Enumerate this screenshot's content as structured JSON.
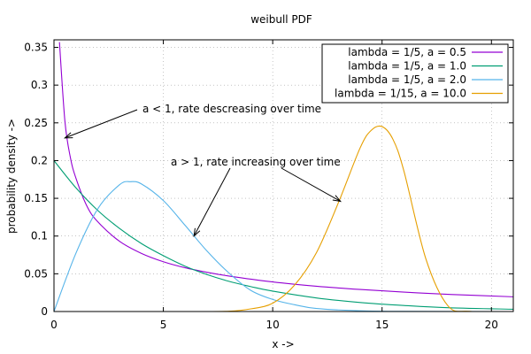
{
  "chart_data": {
    "type": "line",
    "title": "weibull PDF",
    "xlabel": "x ->",
    "ylabel": "probability density ->",
    "xlim": [
      0,
      21
    ],
    "ylim": [
      0,
      0.36
    ],
    "x_ticks": [
      "0",
      "5",
      "10",
      "15",
      "20"
    ],
    "x_tick_values": [
      0,
      5,
      10,
      15,
      20
    ],
    "y_ticks": [
      "0",
      "0.05",
      "0.1",
      "0.15",
      "0.2",
      "0.25",
      "0.3",
      "0.35"
    ],
    "y_tick_values": [
      0,
      0.05,
      0.1,
      0.15,
      0.2,
      0.25,
      0.3,
      0.35
    ],
    "grid": true,
    "legend_position": "top-right",
    "series": [
      {
        "name": "lambda = 1/5, a = 0.5",
        "color": "#9400d3",
        "x": [
          0.25,
          0.5,
          0.75,
          1,
          1.5,
          2,
          3,
          4,
          5,
          6,
          7,
          8,
          10,
          12,
          14,
          16,
          18,
          21
        ],
        "y": [
          0.357,
          0.252,
          0.204,
          0.177,
          0.14,
          0.119,
          0.093,
          0.077,
          0.066,
          0.058,
          0.052,
          0.047,
          0.0392,
          0.0335,
          0.0292,
          0.0257,
          0.0228,
          0.0195
        ]
      },
      {
        "name": "lambda = 1/5, a = 1.0",
        "color": "#009e73",
        "x": [
          0,
          1,
          2,
          3,
          4,
          5,
          6,
          7,
          8,
          9,
          10,
          12,
          14,
          16,
          18,
          21
        ],
        "y": [
          0.2,
          0.164,
          0.134,
          0.11,
          0.09,
          0.074,
          0.06,
          0.049,
          0.04,
          0.033,
          0.027,
          0.018,
          0.012,
          0.008,
          0.005,
          0.003
        ]
      },
      {
        "name": "lambda = 1/5, a = 2.0",
        "color": "#56b4e9",
        "x": [
          0,
          1,
          2,
          3,
          3.5,
          4,
          5,
          6,
          7,
          8,
          9,
          10,
          11,
          12,
          14,
          16,
          21
        ],
        "y": [
          0,
          0.077,
          0.136,
          0.168,
          0.172,
          0.169,
          0.147,
          0.114,
          0.08,
          0.051,
          0.028,
          0.016,
          0.009,
          0.004,
          0.001,
          0.0002,
          0
        ]
      },
      {
        "name": "lambda = 1/15, a = 10.0",
        "color": "#e69f00",
        "x": [
          6.5,
          8,
          9,
          10,
          11,
          12,
          13,
          14,
          14.5,
          15,
          15.5,
          16,
          17,
          18,
          19,
          21
        ],
        "y": [
          0,
          0.0004,
          0.0035,
          0.011,
          0.035,
          0.078,
          0.144,
          0.217,
          0.24,
          0.245,
          0.228,
          0.186,
          0.07,
          0.008,
          0.0002,
          0
        ]
      }
    ],
    "annotations": [
      {
        "text": "a < 1, rate descreasing over time",
        "arrow_to": [
          0.5,
          0.23
        ]
      },
      {
        "text": "a > 1, rate increasing over time",
        "arrow_to": [
          [
            6.4,
            0.1
          ],
          [
            13.1,
            0.146
          ]
        ]
      }
    ]
  }
}
